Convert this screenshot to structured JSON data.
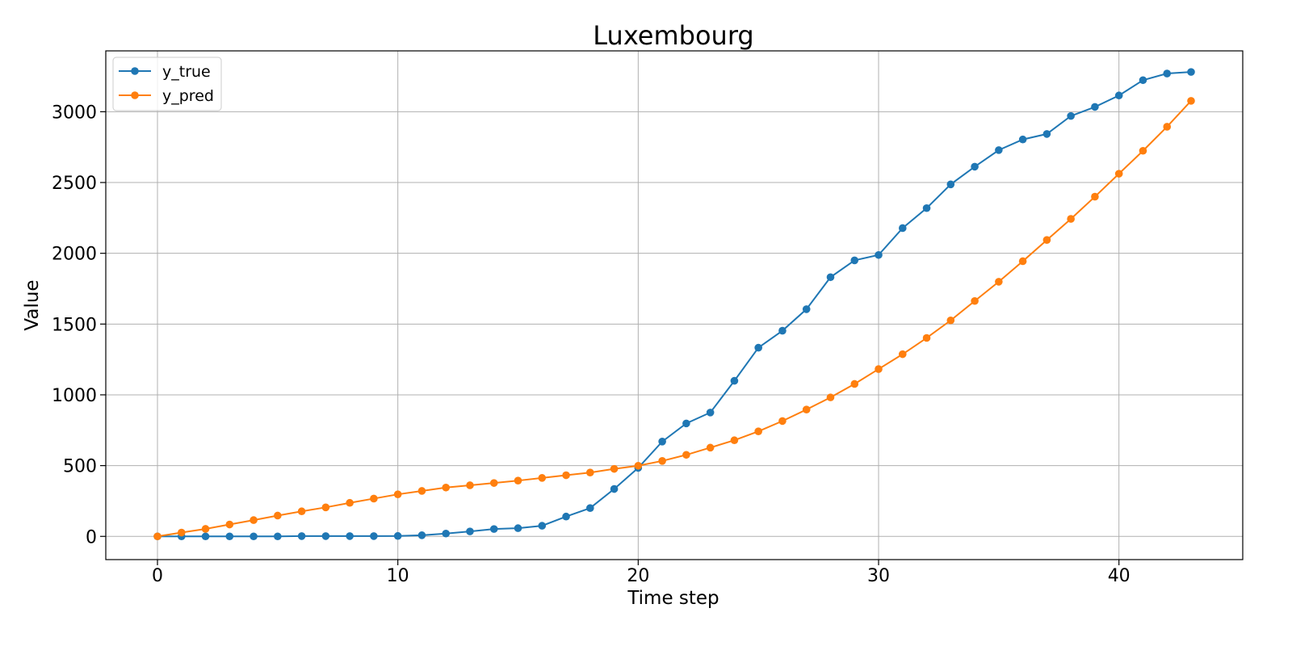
{
  "chart_data": {
    "type": "line",
    "title": "Luxembourg",
    "xlabel": "Time step",
    "ylabel": "Value",
    "xlim": [
      -2.15,
      45.15
    ],
    "ylim": [
      -164,
      3430
    ],
    "xticks": [
      0,
      10,
      20,
      30,
      40
    ],
    "yticks": [
      0,
      500,
      1000,
      1500,
      2000,
      2500,
      3000
    ],
    "grid": true,
    "legend_position": "upper-left",
    "x": [
      0,
      1,
      2,
      3,
      4,
      5,
      6,
      7,
      8,
      9,
      10,
      11,
      12,
      13,
      14,
      15,
      16,
      17,
      18,
      19,
      20,
      21,
      22,
      23,
      24,
      25,
      26,
      27,
      28,
      29,
      30,
      31,
      32,
      33,
      34,
      35,
      36,
      37,
      38,
      39,
      40,
      41,
      42,
      43
    ],
    "series": [
      {
        "name": "y_true",
        "color": "#1f77b4",
        "marker": "circle",
        "values": [
          0,
          0,
          0,
          0,
          0,
          0,
          2,
          2,
          2,
          2,
          3,
          8,
          20,
          35,
          52,
          58,
          75,
          140,
          200,
          335,
          484,
          670,
          798,
          875,
          1099,
          1333,
          1453,
          1605,
          1831,
          1950,
          1988,
          2178,
          2319,
          2487,
          2612,
          2729,
          2804,
          2843,
          2970,
          3034,
          3115,
          3223,
          3270,
          3281
        ]
      },
      {
        "name": "y_pred",
        "color": "#ff7f0e",
        "marker": "circle",
        "values": [
          0,
          27,
          53,
          84,
          115,
          147,
          177,
          205,
          237,
          267,
          297,
          321,
          345,
          361,
          377,
          394,
          413,
          432,
          451,
          477,
          499,
          533,
          576,
          627,
          679,
          742,
          815,
          896,
          982,
          1077,
          1182,
          1287,
          1402,
          1526,
          1663,
          1799,
          1944,
          2094,
          2243,
          2400,
          2562,
          2724,
          2894,
          3077
        ]
      }
    ]
  }
}
